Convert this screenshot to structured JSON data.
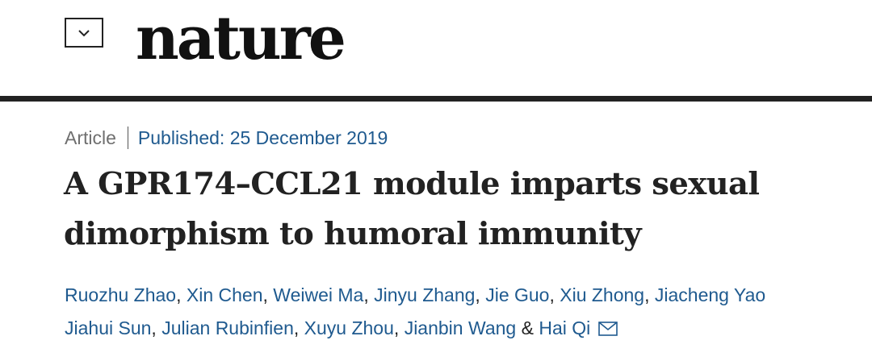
{
  "header": {
    "menu_icon": "chevron-down-icon",
    "logo": "nature"
  },
  "article": {
    "type": "Article",
    "published": "Published: 25 December 2019",
    "title_line1": "A GPR174–CCL21 module imparts sexual",
    "title_line2": "dimorphism to humoral immunity",
    "authors": [
      "Ruozhu Zhao",
      "Xin Chen",
      "Weiwei Ma",
      "Jinyu Zhang",
      "Jie Guo",
      "Xiu Zhong",
      "Jiacheng Yao",
      "Jiahui Sun",
      "Julian Rubinfien",
      "Xuyu Zhou",
      "Jianbin Wang",
      "Hai Qi"
    ],
    "last_separator": " & ",
    "separator": ", ",
    "corresponding_icon": "mail-icon"
  },
  "colors": {
    "link_blue": "#1f5a8f",
    "text": "#222222",
    "muted": "#6f6f6f"
  }
}
